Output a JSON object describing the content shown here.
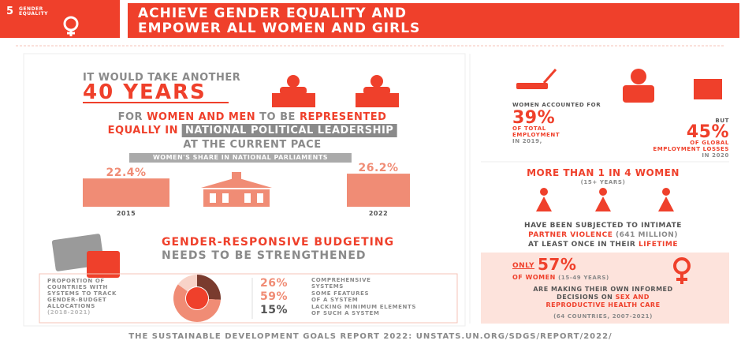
{
  "header": {
    "goal_number": "5",
    "goal_name": "GENDER EQUALITY",
    "title_line1": "ACHIEVE GENDER EQUALITY AND",
    "title_line2": "EMPOWER ALL WOMEN AND GIRLS"
  },
  "years": {
    "intro": "IT WOULD TAKE ANOTHER",
    "headline": "40 YEARS",
    "line1_a": "FOR",
    "line1_b": "WOMEN AND MEN",
    "line1_c": "TO BE",
    "line1_d": "REPRESENTED",
    "line2_a": "EQUALLY IN",
    "line2_b": "NATIONAL POLITICAL LEADERSHIP",
    "line3": "AT THE CURRENT PACE"
  },
  "parliaments": {
    "title": "WOMEN'S SHARE IN NATIONAL PARLIAMENTS",
    "bars": [
      {
        "year": "2015",
        "value": 22.4,
        "label": "22.4%"
      },
      {
        "year": "2022",
        "value": 26.2,
        "label": "26.2%"
      }
    ]
  },
  "budgeting": {
    "title_line1": "GENDER-RESPONSIVE BUDGETING",
    "title_line2": "NEEDS TO BE STRENGTHENED",
    "description": [
      "PROPORTION OF",
      "COUNTRIES WITH",
      "SYSTEMS TO TRACK",
      "GENDER-BUDGET",
      "ALLOCATIONS"
    ],
    "period": "(2018-2021)",
    "segments": [
      {
        "value": 26,
        "label": "26%",
        "text_line1": "COMPREHENSIVE",
        "text_line2": "SYSTEMS"
      },
      {
        "value": 59,
        "label": "59%",
        "text_line1": "SOME FEATURES",
        "text_line2": "OF A SYSTEM"
      },
      {
        "value": 15,
        "label": "15%",
        "text_line1": "LACKING MINIMUM ELEMENTS",
        "text_line2": "OF SUCH A SYSTEM"
      }
    ]
  },
  "employment": {
    "intro": "WOMEN ACCOUNTED FOR",
    "stat1": "39%",
    "stat1_line1": "OF TOTAL",
    "stat1_line2": "EMPLOYMENT",
    "stat1_line3": "IN 2019,",
    "but": "BUT",
    "stat2": "45%",
    "stat2_line1": "OF GLOBAL",
    "stat2_line2": "EMPLOYMENT LOSSES",
    "stat2_line3": "IN 2020"
  },
  "violence": {
    "headline": "MORE THAN 1 IN 4 WOMEN",
    "age": "(15+ YEARS)",
    "line1": "HAVE BEEN SUBJECTED TO INTIMATE",
    "line2_a": "PARTNER VIOLENCE",
    "line2_b": "(641 MILLION)",
    "line3_a": "AT LEAST ONCE IN THEIR",
    "line3_b": "LIFETIME"
  },
  "decisions": {
    "only": "ONLY",
    "stat": "57%",
    "of_women": "OF WOMEN",
    "age": "(15-49 YEARS)",
    "line1": "ARE MAKING THEIR OWN INFORMED",
    "line2_a": "DECISIONS ON",
    "line2_b": "SEX AND",
    "line3": "REPRODUCTIVE HEALTH CARE",
    "source": "(64 COUNTRIES, 2007-2021)"
  },
  "footer": "THE SUSTAINABLE DEVELOPMENT GOALS REPORT 2022: UNSTATS.UN.ORG/SDGS/REPORT/2022/"
}
